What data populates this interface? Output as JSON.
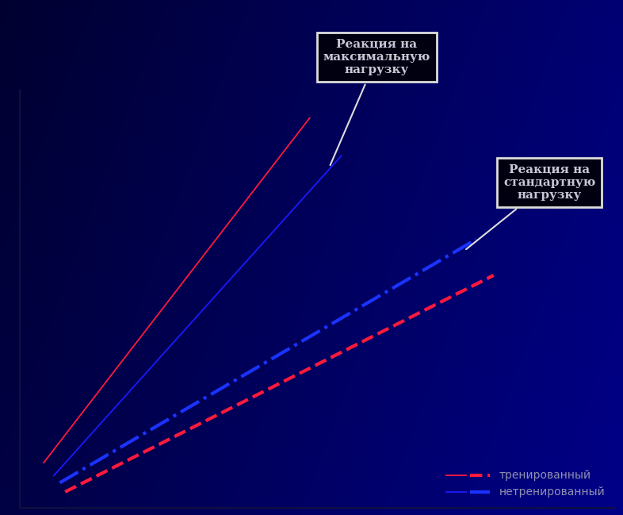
{
  "chart_data": {
    "type": "line",
    "xlim": [
      0,
      100
    ],
    "ylim": [
      0,
      110
    ],
    "xticks": [],
    "yticks": [],
    "tick_labels": false,
    "grid": false,
    "legend": "lower right",
    "series": [
      {
        "name": "тренированный",
        "color": "#ff1a3c",
        "line_style": "solid",
        "x": [
          4.0,
          48.7
        ],
        "values": [
          11.9,
          102.8
        ]
      },
      {
        "name": "нетренированный",
        "color": "#1a1aff",
        "line_style": "solid",
        "x": [
          5.7,
          54.0
        ],
        "values": [
          8.5,
          92.8
        ]
      },
      {
        "name": "нетренированный",
        "color": "#1a33ff",
        "line_style": "dashdot",
        "x": [
          6.7,
          76.7
        ],
        "values": [
          6.6,
          70.8
        ]
      },
      {
        "name": "тренированный",
        "color": "#ff1a3c",
        "line_style": "dashed",
        "x": [
          7.6,
          79.6
        ],
        "values": [
          4.2,
          61.3
        ]
      }
    ],
    "annotations": [
      "Реакция на\nмаксимальную\nнагрузку",
      "Реакция на\nстандартную\nнагрузку"
    ]
  }
}
